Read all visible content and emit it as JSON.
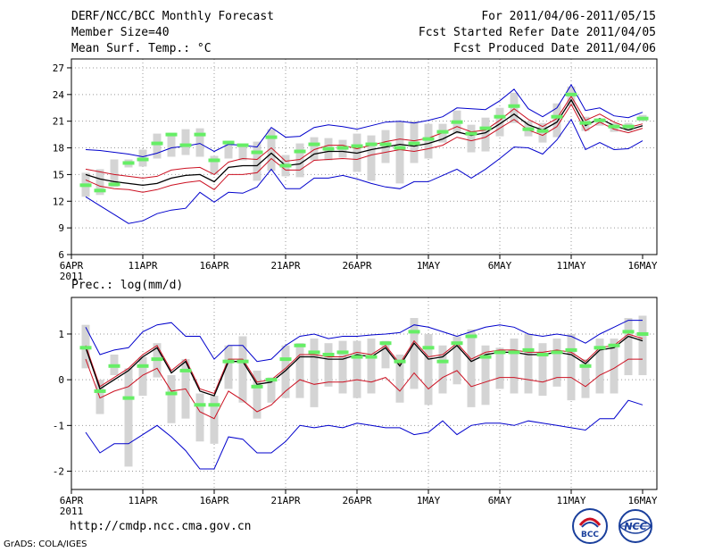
{
  "header": {
    "title": "DERF/NCC/BCC Monthly Forecast",
    "member_size": "Member Size=40",
    "variable": "Mean Surf. Temp.: °C",
    "forecast_period": "For 2011/04/06-2011/05/15",
    "refer_date": "Fcst Started Refer Date 2011/04/05",
    "produced_date": "Fcst Produced Date 2011/04/06"
  },
  "footer": {
    "url": "http://cmdp.ncc.cma.gov.cn",
    "credit": "GrADS: COLA/IGES",
    "logo_bcc": "BCC",
    "logo_ncc": "NCC"
  },
  "colors": {
    "spread": "#d4d4d4",
    "member": "#66ee66",
    "mean": "#000000",
    "inner": "#cc1122",
    "outer": "#0000cc",
    "grid": "#999999"
  },
  "chart_data": [
    {
      "type": "line",
      "title": "Mean Surf. Temp.: °C",
      "x_tick_labels": [
        "6APR",
        "11APR",
        "16APR",
        "21APR",
        "26APR",
        "1MAY",
        "6MAY",
        "11MAY",
        "16MAY"
      ],
      "x_year_label": "2011",
      "ylim": [
        6,
        28
      ],
      "y_ticks": [
        6,
        9,
        12,
        15,
        18,
        21,
        24,
        27
      ],
      "series": [
        {
          "name": "outer_upper",
          "values": [
            17.8,
            17.7,
            17.5,
            17.3,
            17.0,
            17.4,
            18.0,
            18.2,
            18.5,
            17.6,
            18.4,
            18.3,
            18.1,
            20.3,
            19.2,
            19.3,
            20.3,
            20.6,
            20.4,
            20.1,
            20.5,
            20.9,
            21.0,
            20.8,
            21.1,
            21.5,
            22.5,
            22.4,
            22.3,
            23.3,
            24.6,
            22.4,
            21.5,
            22.5,
            25.1,
            22.2,
            22.5,
            21.6,
            21.4,
            22.0
          ]
        },
        {
          "name": "inner_upper",
          "values": [
            15.6,
            15.3,
            15.0,
            14.8,
            14.6,
            14.8,
            15.5,
            15.7,
            15.8,
            15.0,
            16.4,
            16.8,
            16.7,
            18.0,
            16.5,
            16.7,
            17.8,
            18.3,
            18.3,
            17.9,
            18.3,
            18.7,
            19.0,
            18.8,
            19.1,
            19.7,
            20.4,
            19.8,
            20.0,
            21.1,
            22.4,
            21.2,
            20.4,
            21.3,
            23.8,
            21.1,
            21.8,
            20.9,
            20.3,
            20.7
          ]
        },
        {
          "name": "mean",
          "values": [
            15.0,
            14.5,
            14.2,
            14.0,
            13.8,
            14.0,
            14.6,
            14.9,
            15.0,
            14.2,
            15.8,
            16.0,
            16.0,
            17.4,
            16.0,
            16.2,
            17.3,
            17.6,
            17.6,
            17.4,
            17.8,
            18.1,
            18.4,
            18.2,
            18.5,
            19.0,
            19.8,
            19.4,
            19.7,
            20.7,
            21.8,
            20.6,
            20.0,
            20.9,
            23.4,
            20.5,
            21.3,
            20.5,
            20.0,
            20.5
          ]
        },
        {
          "name": "inner_lower",
          "values": [
            14.4,
            13.7,
            13.4,
            13.3,
            13.0,
            13.3,
            13.8,
            14.1,
            14.3,
            13.3,
            15.0,
            15.0,
            15.2,
            16.8,
            15.5,
            15.5,
            16.6,
            16.7,
            16.8,
            16.7,
            17.2,
            17.5,
            17.8,
            17.6,
            17.9,
            18.3,
            19.2,
            18.8,
            19.2,
            20.2,
            21.2,
            20.0,
            19.4,
            20.4,
            22.9,
            19.9,
            20.9,
            20.1,
            19.7,
            20.2
          ]
        },
        {
          "name": "outer_lower",
          "values": [
            12.5,
            11.5,
            10.5,
            9.5,
            9.8,
            10.6,
            11.0,
            11.2,
            13.0,
            11.9,
            13.0,
            12.9,
            13.6,
            15.6,
            13.4,
            13.4,
            14.6,
            14.6,
            14.9,
            14.5,
            14.0,
            13.6,
            13.4,
            14.2,
            14.2,
            14.9,
            15.6,
            14.6,
            15.6,
            16.8,
            18.1,
            18.0,
            17.3,
            18.9,
            21.2,
            17.8,
            18.6,
            17.8,
            17.9,
            18.8
          ]
        },
        {
          "name": "members",
          "values": [
            13.8,
            13.2,
            13.9,
            16.3,
            16.7,
            18.5,
            19.5,
            18.3,
            19.5,
            16.6,
            18.6,
            18.3,
            17.5,
            19.2,
            16.0,
            17.6,
            18.4,
            17.9,
            18.0,
            18.2,
            18.4,
            18.4,
            18.0,
            18.5,
            19.0,
            19.8,
            20.9,
            19.6,
            20.2,
            21.5,
            22.7,
            20.1,
            19.9,
            21.5,
            24.0,
            20.8,
            21.1,
            20.4,
            20.4,
            21.3
          ]
        },
        {
          "name": "spread_high",
          "values": [
            15.2,
            15.6,
            16.7,
            16.7,
            17.8,
            19.6,
            19.7,
            20.1,
            20.2,
            17.1,
            18.8,
            18.3,
            18.7,
            20.1,
            17.2,
            18.5,
            19.2,
            19.1,
            18.9,
            19.6,
            19.4,
            20.0,
            21.0,
            21.0,
            20.7,
            20.7,
            22.2,
            20.6,
            21.4,
            22.5,
            24.2,
            21.0,
            20.8,
            23.0,
            24.9,
            21.5,
            21.3,
            20.8,
            20.8,
            21.7
          ]
        },
        {
          "name": "spread_low",
          "values": [
            12.5,
            12.7,
            13.6,
            15.8,
            15.9,
            16.8,
            17.0,
            17.2,
            17.0,
            15.0,
            16.8,
            16.6,
            14.3,
            15.4,
            14.8,
            14.7,
            16.6,
            16.6,
            16.9,
            15.3,
            14.3,
            16.3,
            14.0,
            16.3,
            16.8,
            18.6,
            19.6,
            17.5,
            17.6,
            19.3,
            20.8,
            19.3,
            18.6,
            19.2,
            22.7,
            19.9,
            20.5,
            19.8,
            19.9,
            21.0
          ]
        }
      ]
    },
    {
      "type": "line",
      "title": "Prec.: log(mm/d)",
      "x_tick_labels": [
        "6APR",
        "11APR",
        "16APR",
        "21APR",
        "26APR",
        "1MAY",
        "6MAY",
        "11MAY",
        "16MAY"
      ],
      "x_year_label": "2011",
      "ylim": [
        -2.4,
        1.8
      ],
      "y_ticks": [
        -2,
        -1,
        0,
        1
      ],
      "series": [
        {
          "name": "outer_upper",
          "values": [
            1.15,
            0.55,
            0.65,
            0.7,
            1.05,
            1.2,
            1.25,
            0.95,
            0.95,
            0.45,
            0.75,
            0.75,
            0.4,
            0.45,
            0.75,
            0.95,
            1.0,
            0.9,
            0.95,
            0.95,
            0.98,
            1.0,
            1.03,
            1.2,
            1.15,
            1.05,
            0.95,
            1.05,
            1.15,
            1.2,
            1.15,
            1.0,
            0.95,
            1.0,
            0.95,
            0.8,
            1.0,
            1.15,
            1.3,
            1.3
          ]
        },
        {
          "name": "inner_upper",
          "values": [
            0.75,
            -0.15,
            0.05,
            0.25,
            0.55,
            0.75,
            0.2,
            0.45,
            -0.2,
            -0.3,
            0.45,
            0.45,
            -0.05,
            0.0,
            0.25,
            0.55,
            0.55,
            0.5,
            0.5,
            0.6,
            0.55,
            0.75,
            0.35,
            0.85,
            0.5,
            0.55,
            0.8,
            0.45,
            0.6,
            0.65,
            0.65,
            0.6,
            0.6,
            0.65,
            0.6,
            0.4,
            0.7,
            0.75,
            1.0,
            0.9
          ]
        },
        {
          "name": "mean",
          "values": [
            0.7,
            -0.2,
            0.0,
            0.2,
            0.5,
            0.7,
            0.15,
            0.4,
            -0.25,
            -0.35,
            0.4,
            0.4,
            -0.1,
            -0.05,
            0.2,
            0.5,
            0.5,
            0.45,
            0.45,
            0.55,
            0.5,
            0.7,
            0.3,
            0.8,
            0.45,
            0.5,
            0.75,
            0.4,
            0.55,
            0.6,
            0.6,
            0.55,
            0.55,
            0.6,
            0.55,
            0.35,
            0.65,
            0.7,
            0.95,
            0.85
          ]
        },
        {
          "name": "inner_lower",
          "values": [
            0.45,
            -0.4,
            -0.25,
            -0.15,
            0.1,
            0.25,
            -0.25,
            -0.2,
            -0.7,
            -0.85,
            -0.25,
            -0.45,
            -0.7,
            -0.55,
            -0.25,
            0.0,
            -0.1,
            -0.05,
            -0.05,
            0.0,
            -0.05,
            0.05,
            -0.25,
            0.15,
            -0.2,
            0.05,
            0.2,
            -0.15,
            -0.05,
            0.05,
            0.05,
            0.0,
            -0.05,
            0.05,
            0.05,
            -0.15,
            0.1,
            0.25,
            0.45,
            0.45
          ]
        },
        {
          "name": "outer_lower",
          "values": [
            -1.15,
            -1.6,
            -1.4,
            -1.4,
            -1.2,
            -1.0,
            -1.25,
            -1.55,
            -1.95,
            -1.95,
            -1.25,
            -1.3,
            -1.6,
            -1.6,
            -1.35,
            -1.0,
            -1.05,
            -1.0,
            -1.05,
            -0.95,
            -1.0,
            -1.05,
            -1.05,
            -1.2,
            -1.15,
            -0.9,
            -1.2,
            -1.0,
            -0.95,
            -0.95,
            -1.0,
            -0.9,
            -0.95,
            -1.0,
            -1.05,
            -1.1,
            -0.85,
            -0.85,
            -0.45,
            -0.55
          ]
        },
        {
          "name": "members",
          "values": [
            0.7,
            -0.25,
            0.3,
            -0.4,
            0.3,
            0.45,
            -0.3,
            0.2,
            -0.55,
            -0.55,
            0.4,
            0.4,
            -0.15,
            0.0,
            0.45,
            0.75,
            0.6,
            0.55,
            0.6,
            0.5,
            0.5,
            0.8,
            0.4,
            1.05,
            0.7,
            0.4,
            0.8,
            0.95,
            0.5,
            0.6,
            0.6,
            0.65,
            0.55,
            0.6,
            0.65,
            0.3,
            0.7,
            0.75,
            1.05,
            1.0
          ]
        },
        {
          "name": "spread_high",
          "values": [
            1.2,
            0.0,
            0.55,
            0.25,
            0.5,
            0.8,
            0.1,
            0.45,
            -0.3,
            -0.35,
            0.75,
            0.95,
            0.2,
            0.05,
            0.75,
            0.8,
            0.9,
            0.8,
            0.85,
            0.85,
            0.9,
            0.85,
            0.55,
            1.35,
            1.0,
            0.75,
            0.95,
            1.1,
            0.75,
            0.7,
            0.9,
            1.0,
            0.8,
            0.9,
            1.0,
            0.45,
            0.9,
            0.9,
            1.35,
            1.4
          ]
        },
        {
          "name": "spread_low",
          "values": [
            0.25,
            -0.75,
            0.1,
            -1.9,
            -0.35,
            0.05,
            -0.95,
            -0.85,
            -1.35,
            -1.4,
            -0.2,
            -0.5,
            -0.85,
            -0.5,
            -0.4,
            -0.4,
            -0.6,
            -0.15,
            -0.3,
            -0.4,
            -0.3,
            0.25,
            -0.5,
            -0.2,
            -0.55,
            -0.3,
            -0.1,
            -0.6,
            -0.55,
            -0.2,
            -0.3,
            -0.3,
            -0.35,
            -0.15,
            -0.45,
            -0.4,
            -0.3,
            -0.3,
            0.1,
            0.1
          ]
        }
      ]
    }
  ]
}
